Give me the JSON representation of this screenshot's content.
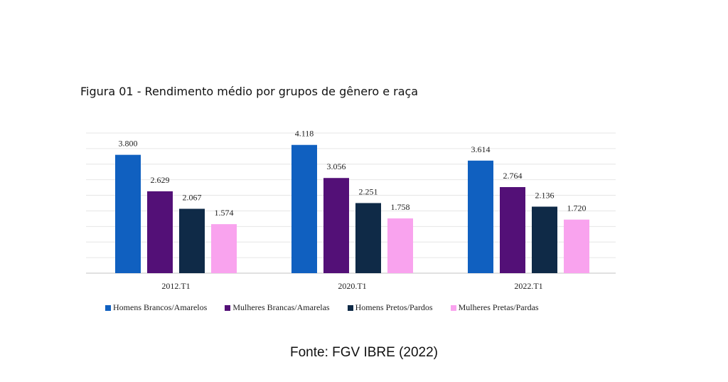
{
  "figure_title": "Figura 01 - Rendimento médio por grupos de gênero e raça",
  "source": "Fonte: FGV IBRE (2022)",
  "colors": {
    "homens_brancos": "#1060c0",
    "mulheres_brancas": "#531077",
    "homens_pretos": "#0f2a47",
    "mulheres_pretas": "#f9a3ee",
    "grid": "#e6e6e6",
    "axis": "#cfcfcf"
  },
  "chart_data": {
    "type": "bar",
    "title": "Figura 01 - Rendimento médio por grupos de gênero e raça",
    "xlabel": "",
    "ylabel": "",
    "categories": [
      "2012.T1",
      "2020.T1",
      "2022.T1"
    ],
    "ylim": [
      0,
      4500
    ],
    "grid": true,
    "legend_position": "bottom",
    "series": [
      {
        "name": "Homens Brancos/Amarelos",
        "values": [
          3800,
          4118,
          3614
        ],
        "labels": [
          "3.800",
          "4.118",
          "3.614"
        ]
      },
      {
        "name": "Mulheres Brancas/Amarelas",
        "values": [
          2629,
          3056,
          2764
        ],
        "labels": [
          "2.629",
          "3.056",
          "2.764"
        ]
      },
      {
        "name": "Homens Pretos/Pardos",
        "values": [
          2067,
          2251,
          2136
        ],
        "labels": [
          "2.067",
          "2.251",
          "2.136"
        ]
      },
      {
        "name": "Mulheres Pretas/Pardas",
        "values": [
          1574,
          1758,
          1720
        ],
        "labels": [
          "1.574",
          "1.758",
          "1.720"
        ]
      }
    ]
  }
}
